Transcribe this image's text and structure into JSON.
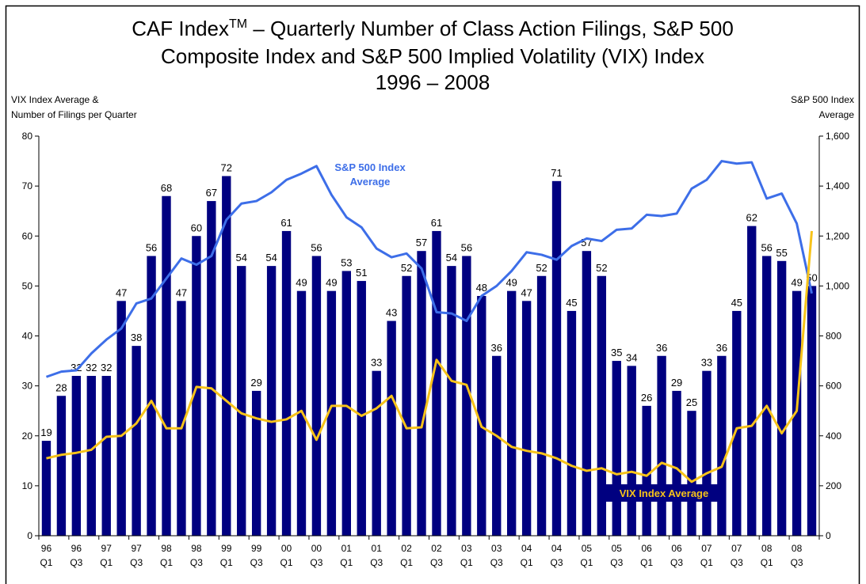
{
  "chart_data": {
    "type": "bar",
    "title": {
      "main": "CAF Index",
      "sup": "TM",
      "rest": " – Quarterly Number of Class Action Filings, S&P 500",
      "line2": "Composite Index and S&P 500 Implied Volatility (VIX) Index",
      "line3": "1996 – 2008"
    },
    "ylabel": [
      "VIX Index Average &",
      "Number of Filings per Quarter"
    ],
    "y2label": [
      "S&P 500 Index",
      "Average"
    ],
    "categories": [
      [
        "96",
        "Q1"
      ],
      null,
      [
        "96",
        "Q3"
      ],
      null,
      [
        "97",
        "Q1"
      ],
      null,
      [
        "97",
        "Q3"
      ],
      null,
      [
        "98",
        "Q1"
      ],
      null,
      [
        "98",
        "Q3"
      ],
      null,
      [
        "99",
        "Q1"
      ],
      null,
      [
        "99",
        "Q3"
      ],
      null,
      [
        "00",
        "Q1"
      ],
      null,
      [
        "00",
        "Q3"
      ],
      null,
      [
        "01",
        "Q1"
      ],
      null,
      [
        "01",
        "Q3"
      ],
      null,
      [
        "02",
        "Q1"
      ],
      null,
      [
        "02",
        "Q3"
      ],
      null,
      [
        "03",
        "Q1"
      ],
      null,
      [
        "03",
        "Q3"
      ],
      null,
      [
        "04",
        "Q1"
      ],
      null,
      [
        "04",
        "Q3"
      ],
      null,
      [
        "05",
        "Q1"
      ],
      null,
      [
        "05",
        "Q3"
      ],
      null,
      [
        "06",
        "Q1"
      ],
      null,
      [
        "06",
        "Q3"
      ],
      null,
      [
        "07",
        "Q1"
      ],
      null,
      [
        "07",
        "Q3"
      ],
      null,
      [
        "08",
        "Q1"
      ],
      null,
      [
        "08",
        "Q3"
      ],
      null
    ],
    "series": [
      {
        "type": "bar",
        "color": "#000080",
        "values": [
          19,
          28,
          32,
          32,
          32,
          47,
          38,
          56,
          68,
          47,
          60,
          67,
          72,
          54,
          29,
          54,
          61,
          49,
          56,
          49,
          53,
          51,
          33,
          43,
          52,
          57,
          61,
          54,
          56,
          48,
          36,
          49,
          47,
          52,
          71,
          45,
          57,
          52,
          35,
          34,
          26,
          36,
          29,
          25,
          33,
          36,
          45,
          62,
          56,
          55,
          49,
          50
        ]
      },
      {
        "type": "line",
        "name": [
          "S&P 500 Index",
          "Average"
        ],
        "axis": "y2",
        "color": "#3d6ee8",
        "values": [
          636,
          657,
          662,
          730,
          785,
          830,
          930,
          950,
          1030,
          1110,
          1085,
          1120,
          1265,
          1330,
          1340,
          1375,
          1425,
          1450,
          1480,
          1365,
          1275,
          1235,
          1150,
          1115,
          1130,
          1070,
          895,
          890,
          860,
          960,
          1000,
          1060,
          1135,
          1125,
          1105,
          1160,
          1190,
          1180,
          1225,
          1230,
          1285,
          1280,
          1290,
          1390,
          1425,
          1500,
          1490,
          1495,
          1350,
          1370,
          1250,
          970
        ]
      },
      {
        "type": "line",
        "name": [
          "VIX Index Average"
        ],
        "color": "#f7c31a",
        "values": [
          15.5,
          16.2,
          16.6,
          17.2,
          19.8,
          20,
          22.5,
          27,
          21.5,
          21.5,
          29.8,
          29.5,
          27,
          24.5,
          23.5,
          22.8,
          23.3,
          25,
          19.2,
          26,
          26,
          24,
          25.5,
          28,
          21.5,
          21.7,
          35.2,
          31,
          30.2,
          21.8,
          20,
          17.8,
          17,
          16.5,
          15.5,
          14,
          13,
          13.5,
          12.3,
          12.8,
          12,
          14.6,
          13.5,
          10.8,
          12.5,
          13.8,
          21.5,
          22,
          26,
          20.5,
          25,
          61
        ]
      }
    ],
    "ylim": [
      0,
      80
    ],
    "yticks": [
      0,
      10,
      20,
      30,
      40,
      50,
      60,
      70,
      80
    ],
    "y2lim": [
      0,
      1600
    ],
    "y2ticks": [
      0,
      200,
      400,
      600,
      800,
      {
        "value": 1000,
        "label": "1,000"
      },
      {
        "value": 1200,
        "label": "1,200"
      },
      {
        "value": 1400,
        "label": "1,400"
      },
      {
        "value": 1600,
        "label": "1,600"
      }
    ]
  }
}
